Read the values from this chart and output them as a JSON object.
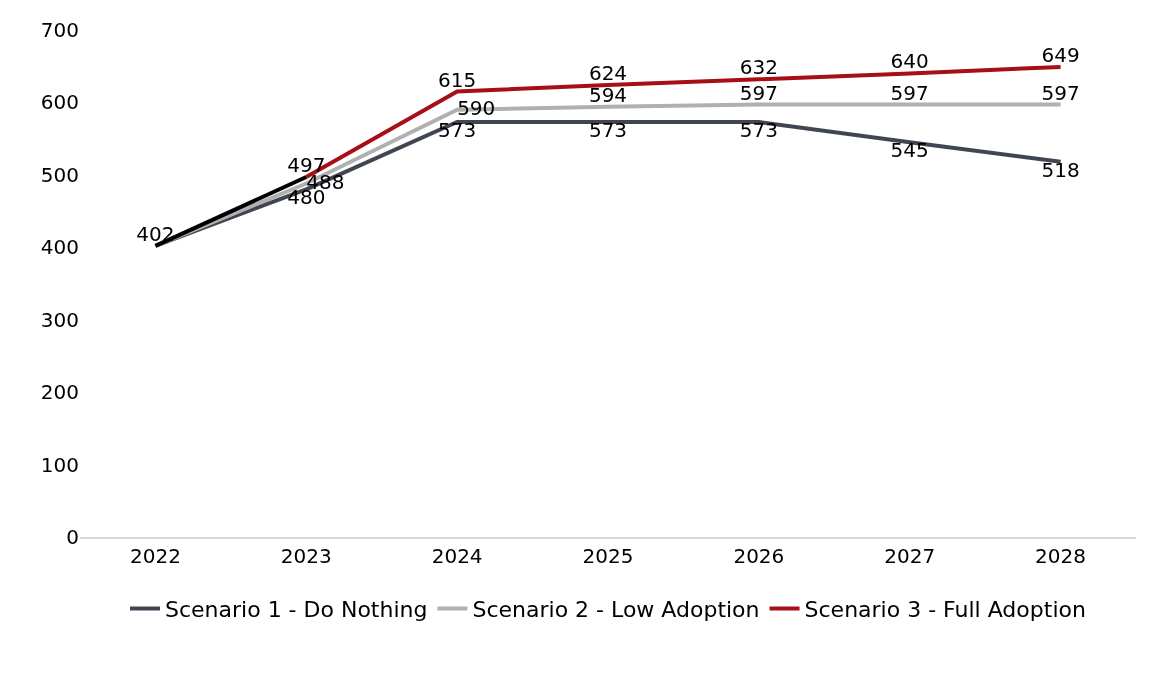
{
  "chart_data": {
    "type": "line",
    "categories": [
      "2022",
      "2023",
      "2024",
      "2025",
      "2026",
      "2027",
      "2028"
    ],
    "series": [
      {
        "name": "Scenario 1 - Do Nothing",
        "color": "#404651",
        "values": [
          402,
          480,
          573,
          573,
          573,
          545,
          518
        ],
        "value_labels": [
          null,
          "480",
          "573",
          "573",
          "573",
          "545",
          "518"
        ]
      },
      {
        "name": "Scenario 2 - Low Adoption",
        "color": "#b0b0b0",
        "values": [
          402,
          488,
          590,
          594,
          597,
          597,
          597
        ],
        "value_labels": [
          null,
          "488",
          "590",
          "594",
          "597",
          "597",
          "597"
        ]
      },
      {
        "name": "Scenario 3 - Full Adoption",
        "color": "#a50f15",
        "values": [
          null,
          497,
          615,
          624,
          632,
          640,
          649
        ],
        "value_labels": [
          null,
          "497",
          "615",
          "624",
          "632",
          "640",
          "649"
        ]
      },
      {
        "color": "#000000",
        "values": [
          402,
          497,
          null,
          null,
          null,
          null,
          null
        ],
        "value_labels": [
          "402",
          null,
          null,
          null,
          null,
          null,
          null
        ]
      }
    ],
    "ylim": [
      0,
      700
    ],
    "yticks": [
      0,
      100,
      200,
      300,
      400,
      500,
      600,
      700
    ],
    "grid": false,
    "legend": "bottom",
    "marker": "none",
    "line_style": "solid"
  }
}
